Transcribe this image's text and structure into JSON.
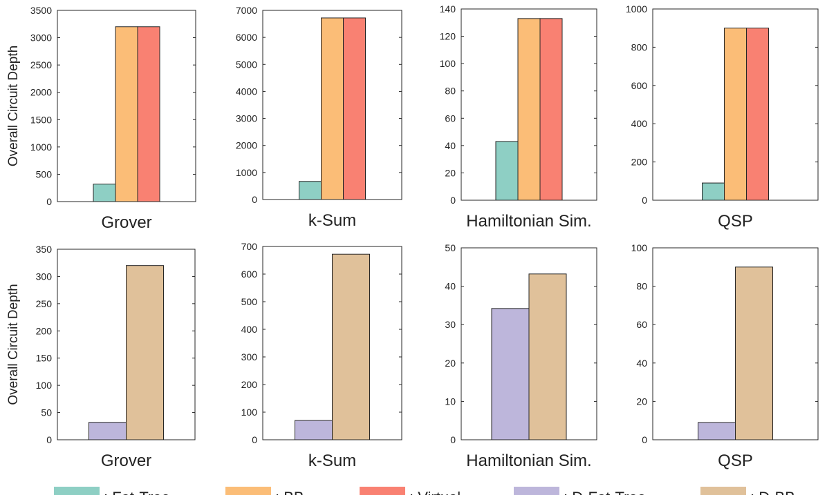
{
  "colors": {
    "fat_tree": "#8ecfc4",
    "bb": "#fbbd77",
    "virtual": "#f98172",
    "d_fat_tree": "#bdb6db",
    "d_bb": "#e0c19a"
  },
  "chart_data": [
    {
      "type": "bar",
      "row": 1,
      "category": "Grover",
      "ylabel": "Overall Circuit Depth",
      "ylim": [
        0,
        3500
      ],
      "yticks": [
        0,
        500,
        1000,
        1500,
        2000,
        2500,
        3000,
        3500
      ],
      "series": [
        {
          "name": ": Fat-Tree",
          "value": 320
        },
        {
          "name": ": BB",
          "value": 3200
        },
        {
          "name": ": Virtual",
          "value": 3200
        }
      ]
    },
    {
      "type": "bar",
      "row": 1,
      "category": "k-Sum",
      "ylabel": "",
      "ylim": [
        0,
        7000
      ],
      "yticks": [
        0,
        1000,
        2000,
        3000,
        4000,
        5000,
        6000,
        7000
      ],
      "series": [
        {
          "name": ": Fat-Tree",
          "value": 670
        },
        {
          "name": ": BB",
          "value": 6720
        },
        {
          "name": ": Virtual",
          "value": 6720
        }
      ]
    },
    {
      "type": "bar",
      "row": 1,
      "category": "Hamiltonian Sim.",
      "ylabel": "",
      "ylim": [
        0,
        140
      ],
      "yticks": [
        0,
        20,
        40,
        60,
        80,
        100,
        120,
        140
      ],
      "series": [
        {
          "name": ": Fat-Tree",
          "value": 43
        },
        {
          "name": ": BB",
          "value": 133
        },
        {
          "name": ": Virtual",
          "value": 133
        }
      ]
    },
    {
      "type": "bar",
      "row": 1,
      "category": "QSP",
      "ylabel": "",
      "ylim": [
        0,
        1000
      ],
      "yticks": [
        0,
        200,
        400,
        600,
        800,
        1000
      ],
      "series": [
        {
          "name": ": Fat-Tree",
          "value": 90
        },
        {
          "name": ": BB",
          "value": 900
        },
        {
          "name": ": Virtual",
          "value": 900
        }
      ]
    },
    {
      "type": "bar",
      "row": 2,
      "category": "Grover",
      "ylabel": "Overall Circuit Depth",
      "ylim": [
        0,
        350
      ],
      "yticks": [
        0,
        50,
        100,
        150,
        200,
        250,
        300,
        350
      ],
      "series": [
        {
          "name": ": D-Fat-Tree",
          "value": 32
        },
        {
          "name": ": D-BB",
          "value": 320
        }
      ]
    },
    {
      "type": "bar",
      "row": 2,
      "category": "k-Sum",
      "ylabel": "",
      "ylim": [
        0,
        700
      ],
      "yticks": [
        0,
        100,
        200,
        300,
        400,
        500,
        600,
        700
      ],
      "series": [
        {
          "name": ": D-Fat-Tree",
          "value": 70
        },
        {
          "name": ": D-BB",
          "value": 672
        }
      ]
    },
    {
      "type": "bar",
      "row": 2,
      "category": "Hamiltonian Sim.",
      "ylabel": "",
      "ylim": [
        0,
        50
      ],
      "yticks": [
        0,
        10,
        20,
        30,
        40,
        50
      ],
      "series": [
        {
          "name": ": D-Fat-Tree",
          "value": 34.2
        },
        {
          "name": ": D-BB",
          "value": 43.2
        }
      ]
    },
    {
      "type": "bar",
      "row": 2,
      "category": "QSP",
      "ylabel": "",
      "ylim": [
        0,
        100
      ],
      "yticks": [
        0,
        20,
        40,
        60,
        80,
        100
      ],
      "series": [
        {
          "name": ": D-Fat-Tree",
          "value": 9
        },
        {
          "name": ": D-BB",
          "value": 90
        }
      ]
    }
  ],
  "legend": [
    {
      "label": ": Fat-Tree",
      "color_key": "fat_tree"
    },
    {
      "label": ": BB",
      "color_key": "bb"
    },
    {
      "label": ": Virtual",
      "color_key": "virtual"
    },
    {
      "label": ": D-Fat-Tree",
      "color_key": "d_fat_tree"
    },
    {
      "label": ": D-BB",
      "color_key": "d_bb"
    }
  ]
}
